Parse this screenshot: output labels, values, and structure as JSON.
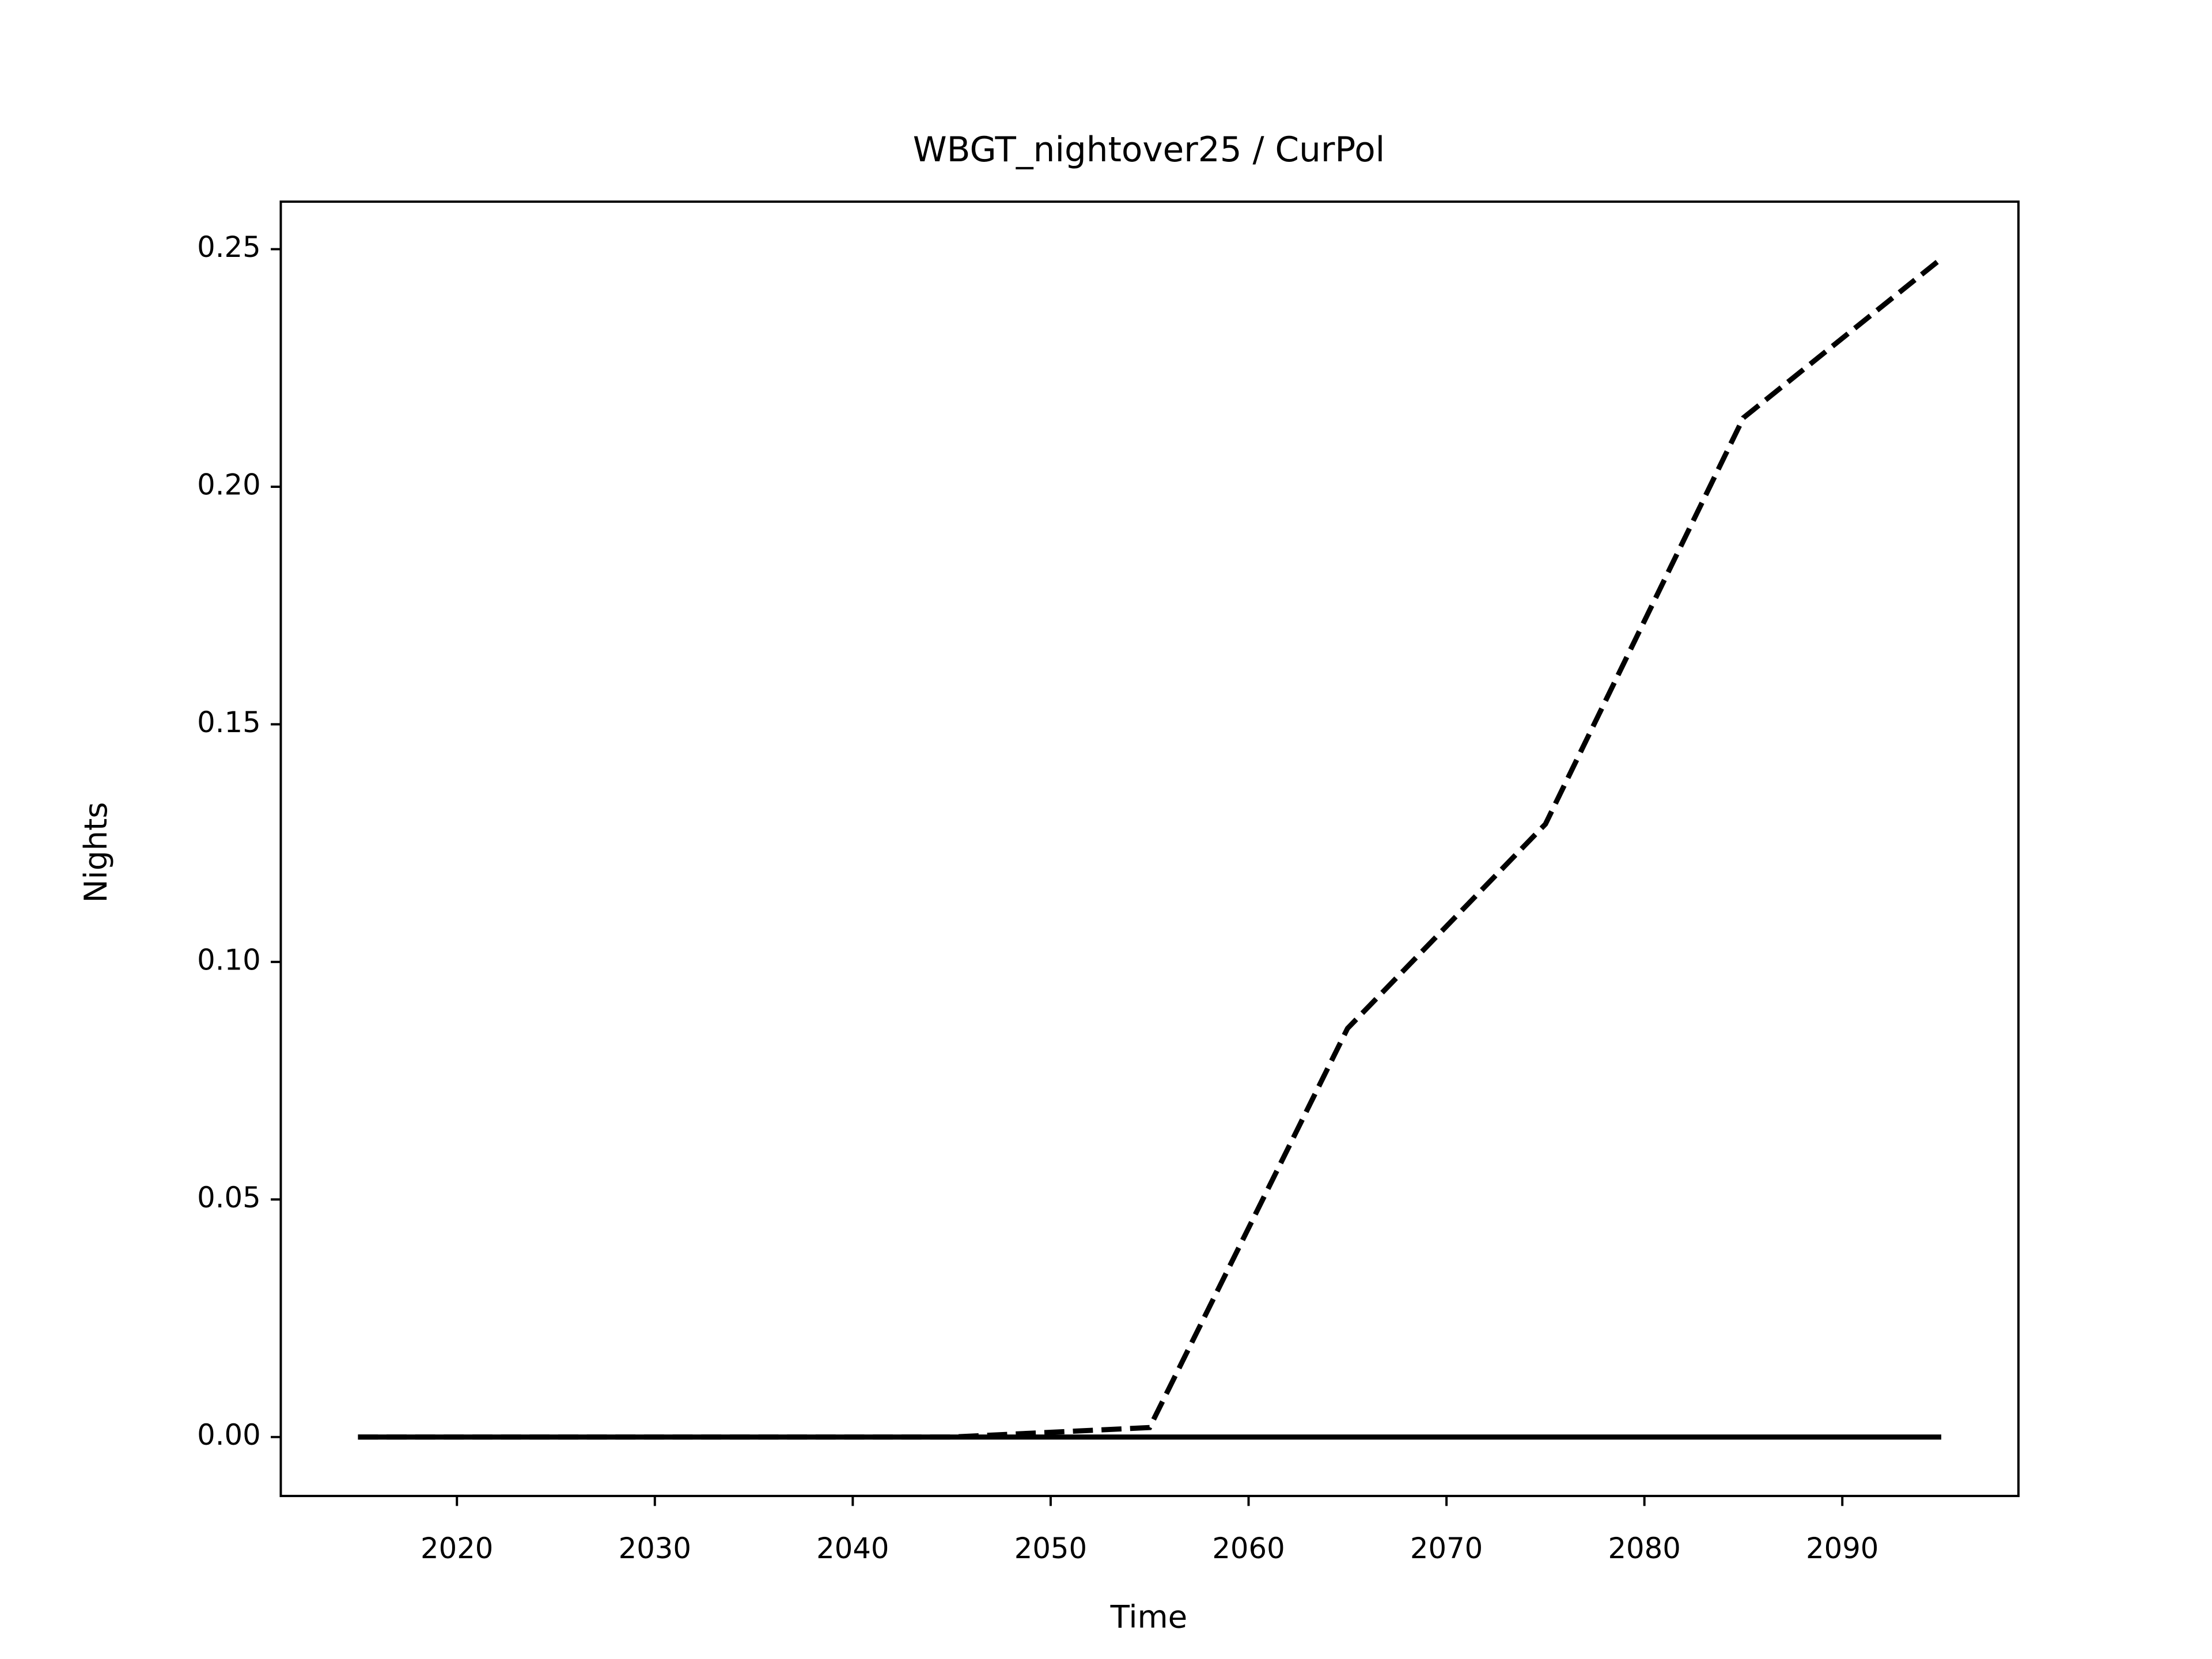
{
  "chart_data": {
    "type": "line",
    "title": "WBGT_nightover25 / CurPol",
    "x_label": "Time",
    "y_label": "Nights",
    "x": [
      2015,
      2025,
      2035,
      2045,
      2055,
      2065,
      2075,
      2085,
      2095
    ],
    "series": [
      {
        "color": "#000000",
        "dash": true,
        "values": [
          0,
          0,
          0,
          0,
          0.002,
          0.086,
          0.129,
          0.2145,
          0.248
        ]
      },
      {
        "color": "#000000",
        "dash": false,
        "values": [
          0,
          0,
          0,
          0,
          0,
          0,
          0,
          0,
          0
        ]
      }
    ],
    "xlim": [
      2011.1,
      2098.9
    ],
    "ylim": [
      -0.0124,
      0.26
    ],
    "xticks": [
      2020,
      2030,
      2040,
      2050,
      2060,
      2070,
      2080,
      2090
    ],
    "yticks": [
      {
        "value": 0,
        "label": "0.00"
      },
      {
        "value": 0.05,
        "label": "0.05"
      },
      {
        "value": 0.1,
        "label": "0.10"
      },
      {
        "value": 0.15,
        "label": "0.15"
      },
      {
        "value": 0.2,
        "label": "0.20"
      },
      {
        "value": 0.25,
        "label": "0.25"
      }
    ]
  }
}
